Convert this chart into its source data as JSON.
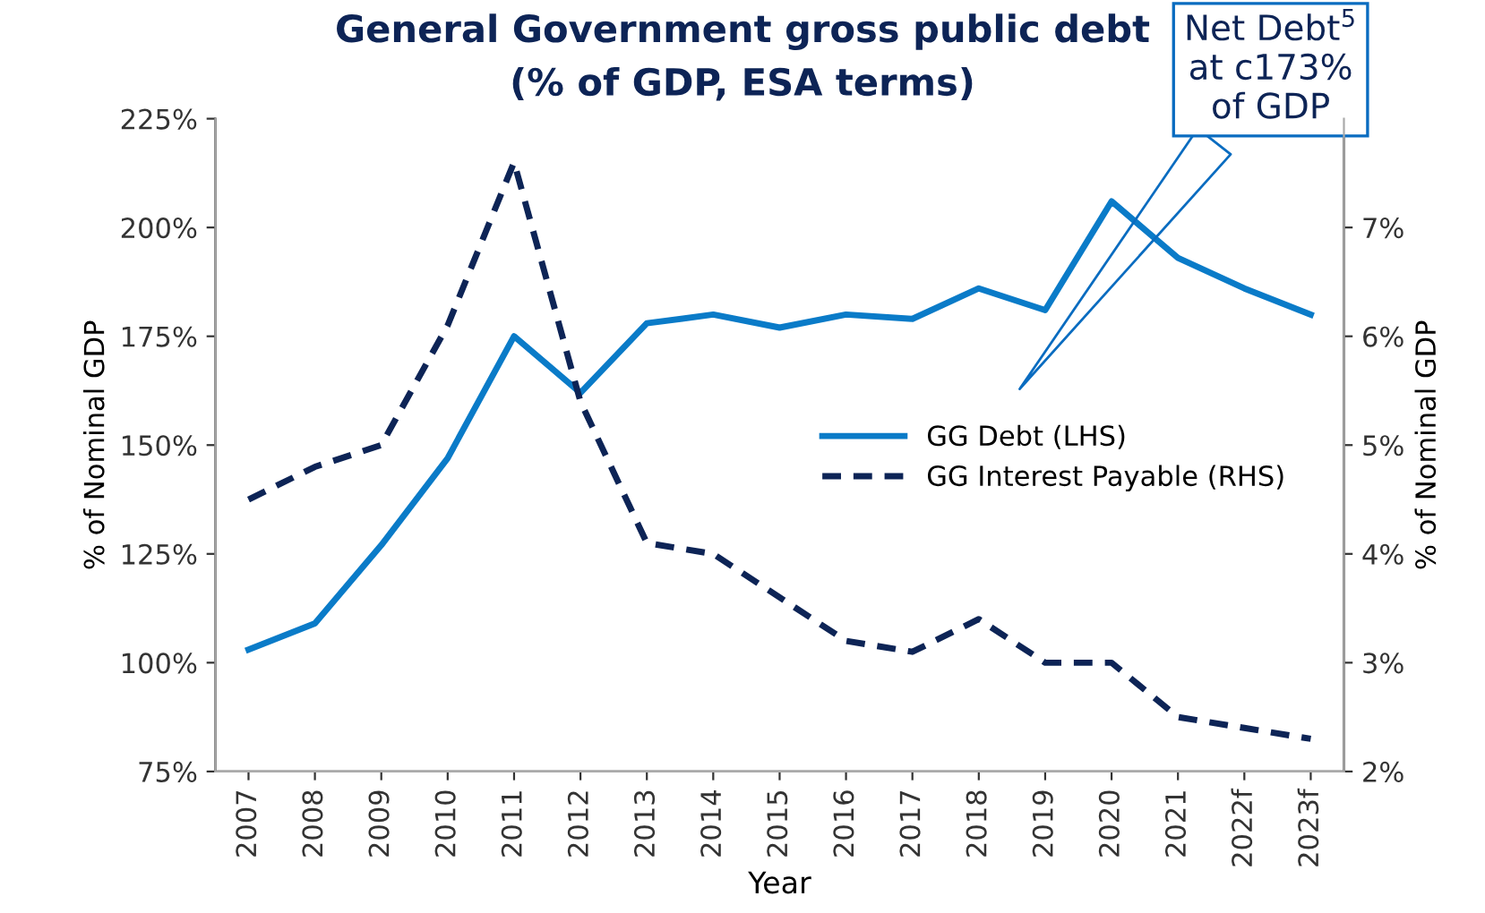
{
  "chart_data": {
    "type": "line",
    "title": "General Government gross public debt\n(% of GDP, ESA terms)",
    "xlabel": "Year",
    "ylabel": "% of Nominal GDP",
    "y2label": "% of Nominal GDP",
    "categories": [
      "2007",
      "2008",
      "2009",
      "2010",
      "2011",
      "2012",
      "2013",
      "2014",
      "2015",
      "2016",
      "2017",
      "2018",
      "2019",
      "2020",
      "2021",
      "2022f",
      "2023f"
    ],
    "series": [
      {
        "name": "GG Debt (LHS)",
        "color": "#0a7bc8",
        "line_style": "solid",
        "values": [
          103,
          109,
          127,
          147,
          175,
          162,
          178,
          180,
          177,
          180,
          179,
          186,
          181,
          206,
          193,
          186,
          180
        ]
      },
      {
        "name": "GG Interest Payable (RHS)",
        "color": "#0d2456",
        "line_style": "dashed",
        "axis": "y2",
        "values": [
          4.5,
          4.8,
          5.0,
          6.1,
          7.6,
          5.4,
          4.1,
          4.0,
          3.6,
          3.2,
          3.1,
          3.4,
          3.0,
          3.0,
          2.5,
          2.4,
          2.3
        ]
      }
    ],
    "ylim": [
      75,
      225
    ],
    "yticks": [
      {
        "value": 75,
        "label": "75%"
      },
      {
        "value": 100,
        "label": "100%"
      },
      {
        "value": 125,
        "label": "125%"
      },
      {
        "value": 150,
        "label": "150%"
      },
      {
        "value": 175,
        "label": "175%"
      },
      {
        "value": 200,
        "label": "200%"
      },
      {
        "value": 225,
        "label": "225%"
      }
    ],
    "y2lim": [
      2,
      8
    ],
    "y2ticks": [
      {
        "value": 2,
        "label": "2%"
      },
      {
        "value": 3,
        "label": "3%"
      },
      {
        "value": 4,
        "label": "4%"
      },
      {
        "value": 5,
        "label": "5%"
      },
      {
        "value": 6,
        "label": "6%"
      },
      {
        "value": 7,
        "label": "7%"
      }
    ],
    "annotations": [
      "Net Debt$^{5}$\nat c173%\nof GDP"
    ],
    "legend": "center right",
    "grid": false
  }
}
